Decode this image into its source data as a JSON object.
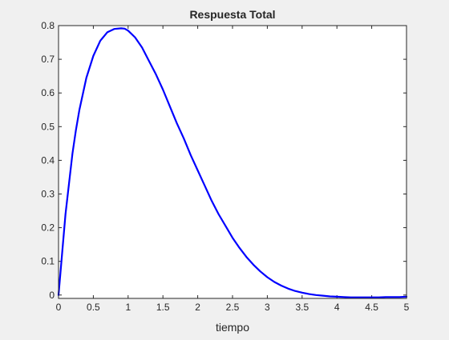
{
  "chart_data": {
    "type": "line",
    "title": "Respuesta Total",
    "xlabel": "tiempo",
    "ylabel": "",
    "xlim": [
      0,
      5
    ],
    "ylim": [
      -0.01,
      0.8
    ],
    "x_ticks": [
      0,
      0.5,
      1,
      1.5,
      2,
      2.5,
      3,
      3.5,
      4,
      4.5,
      5
    ],
    "x_tick_labels": [
      "0",
      "0.5",
      "1",
      "1.5",
      "2",
      "2.5",
      "3",
      "3.5",
      "4",
      "4.5",
      "5"
    ],
    "y_ticks": [
      0,
      0.1,
      0.2,
      0.3,
      0.4,
      0.5,
      0.6,
      0.7,
      0.8
    ],
    "y_tick_labels": [
      "0",
      "0.1",
      "0.2",
      "0.3",
      "0.4",
      "0.5",
      "0.6",
      "0.7",
      "0.8"
    ],
    "grid": false,
    "series": [
      {
        "color": "#0000ff",
        "x": [
          0,
          0.05,
          0.1,
          0.15,
          0.2,
          0.25,
          0.3,
          0.4,
          0.5,
          0.6,
          0.7,
          0.8,
          0.9,
          0.95,
          1.0,
          1.1,
          1.2,
          1.3,
          1.4,
          1.5,
          1.6,
          1.7,
          1.8,
          1.9,
          2.0,
          2.1,
          2.2,
          2.3,
          2.4,
          2.5,
          2.6,
          2.7,
          2.8,
          2.9,
          3.0,
          3.1,
          3.2,
          3.3,
          3.4,
          3.5,
          3.6,
          3.7,
          3.8,
          3.9,
          4.0,
          4.1,
          4.2,
          4.3,
          4.4,
          4.5,
          4.6,
          4.7,
          4.8,
          4.9,
          5.0
        ],
        "y": [
          0.0,
          0.12,
          0.24,
          0.33,
          0.42,
          0.49,
          0.55,
          0.645,
          0.71,
          0.755,
          0.78,
          0.79,
          0.792,
          0.791,
          0.785,
          0.765,
          0.735,
          0.695,
          0.655,
          0.61,
          0.56,
          0.51,
          0.465,
          0.415,
          0.37,
          0.325,
          0.28,
          0.24,
          0.205,
          0.17,
          0.14,
          0.113,
          0.09,
          0.07,
          0.053,
          0.039,
          0.028,
          0.019,
          0.012,
          0.007,
          0.003,
          0.0,
          -0.002,
          -0.004,
          -0.005,
          -0.006,
          -0.007,
          -0.007,
          -0.007,
          -0.007,
          -0.007,
          -0.006,
          -0.006,
          -0.006,
          -0.005
        ]
      }
    ]
  }
}
